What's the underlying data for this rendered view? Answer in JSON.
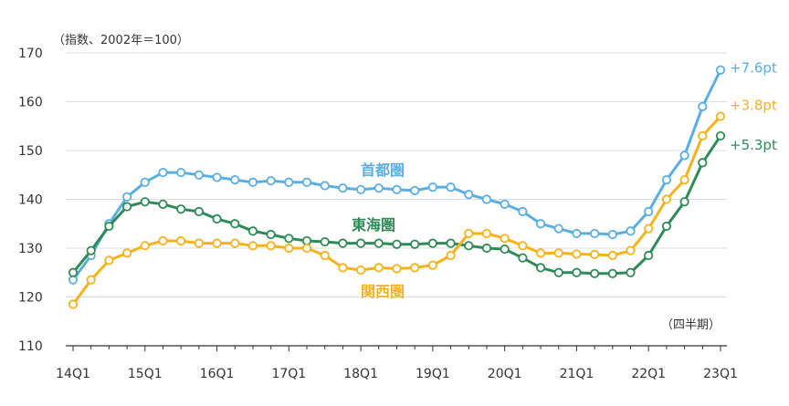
{
  "chart_data": {
    "type": "line",
    "unit_note": "（指数、2002年＝100）",
    "period_note": "（四半期）",
    "ylim": [
      110,
      170
    ],
    "yticks": [
      110,
      120,
      130,
      140,
      150,
      160,
      170
    ],
    "grid": "horizontal",
    "x": [
      "14Q1",
      "14Q2",
      "14Q3",
      "14Q4",
      "15Q1",
      "15Q2",
      "15Q3",
      "15Q4",
      "16Q1",
      "16Q2",
      "16Q3",
      "16Q4",
      "17Q1",
      "17Q2",
      "17Q3",
      "17Q4",
      "18Q1",
      "18Q2",
      "18Q3",
      "18Q4",
      "19Q1",
      "19Q2",
      "19Q3",
      "19Q4",
      "20Q1",
      "20Q2",
      "20Q3",
      "20Q4",
      "21Q1",
      "21Q2",
      "21Q3",
      "21Q4",
      "22Q1",
      "22Q2",
      "22Q3",
      "22Q4",
      "23Q1"
    ],
    "xtick_labels": [
      "14Q1",
      "15Q1",
      "16Q1",
      "17Q1",
      "18Q1",
      "19Q1",
      "20Q1",
      "21Q1",
      "22Q1",
      "23Q1"
    ],
    "series": [
      {
        "name": "首都圏",
        "color": "#5aaee0",
        "end_label": "+7.6pt",
        "values": [
          123.5,
          128.5,
          135.0,
          140.5,
          143.5,
          145.5,
          145.5,
          145.0,
          144.5,
          144.0,
          143.5,
          143.8,
          143.5,
          143.5,
          142.8,
          142.3,
          142.0,
          142.3,
          142.0,
          141.8,
          142.5,
          142.5,
          141.0,
          140.0,
          139.0,
          137.5,
          135.0,
          134.0,
          133.0,
          133.0,
          132.8,
          133.5,
          137.5,
          144.0,
          149.0,
          159.0,
          166.5
        ]
      },
      {
        "name": "東海圏",
        "color": "#2e8b57",
        "end_label": "+5.3pt",
        "values": [
          125.0,
          129.5,
          134.5,
          138.5,
          139.5,
          139.0,
          138.0,
          137.5,
          136.0,
          135.0,
          133.5,
          132.8,
          132.0,
          131.5,
          131.3,
          131.0,
          131.0,
          131.0,
          130.8,
          130.8,
          131.0,
          131.0,
          130.5,
          130.0,
          129.8,
          128.0,
          126.0,
          125.0,
          125.0,
          124.8,
          124.8,
          125.0,
          128.5,
          134.5,
          139.5,
          147.5,
          153.0
        ]
      },
      {
        "name": "関西圏",
        "color": "#f5b21b",
        "end_label": "+3.8pt",
        "values": [
          118.5,
          123.5,
          127.5,
          129.0,
          130.5,
          131.5,
          131.5,
          131.0,
          131.0,
          131.0,
          130.5,
          130.5,
          130.0,
          130.0,
          128.5,
          126.0,
          125.5,
          126.0,
          125.8,
          126.0,
          126.5,
          128.5,
          133.0,
          133.0,
          132.0,
          130.5,
          129.0,
          129.0,
          128.8,
          128.7,
          128.5,
          129.5,
          134.0,
          140.0,
          144.0,
          153.0,
          157.0
        ]
      }
    ]
  }
}
